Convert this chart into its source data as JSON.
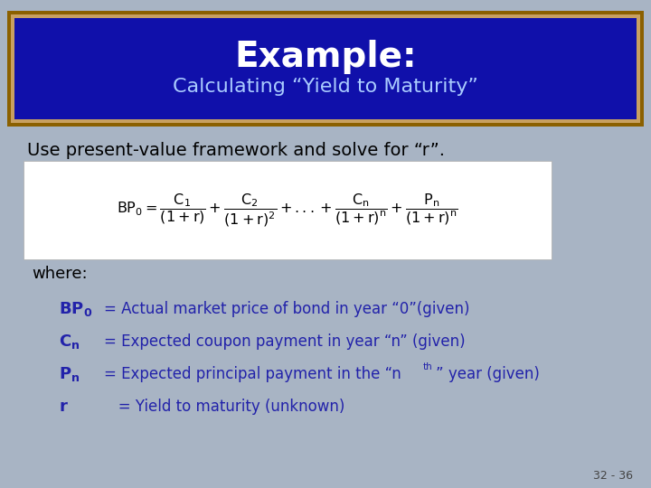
{
  "title_line1": "Example:",
  "title_line2": "Calculating “Yield to Maturity”",
  "title_bg_color": "#1010aa",
  "title_border_outer": "#8B6000",
  "title_border_inner": "#c8a060",
  "slide_bg_color": "#a8b4c4",
  "body_text_color": "#2222aa",
  "intro_text": "Use present-value framework and solve for “r”.",
  "where_text": "where:",
  "page_num": "32 - 36"
}
